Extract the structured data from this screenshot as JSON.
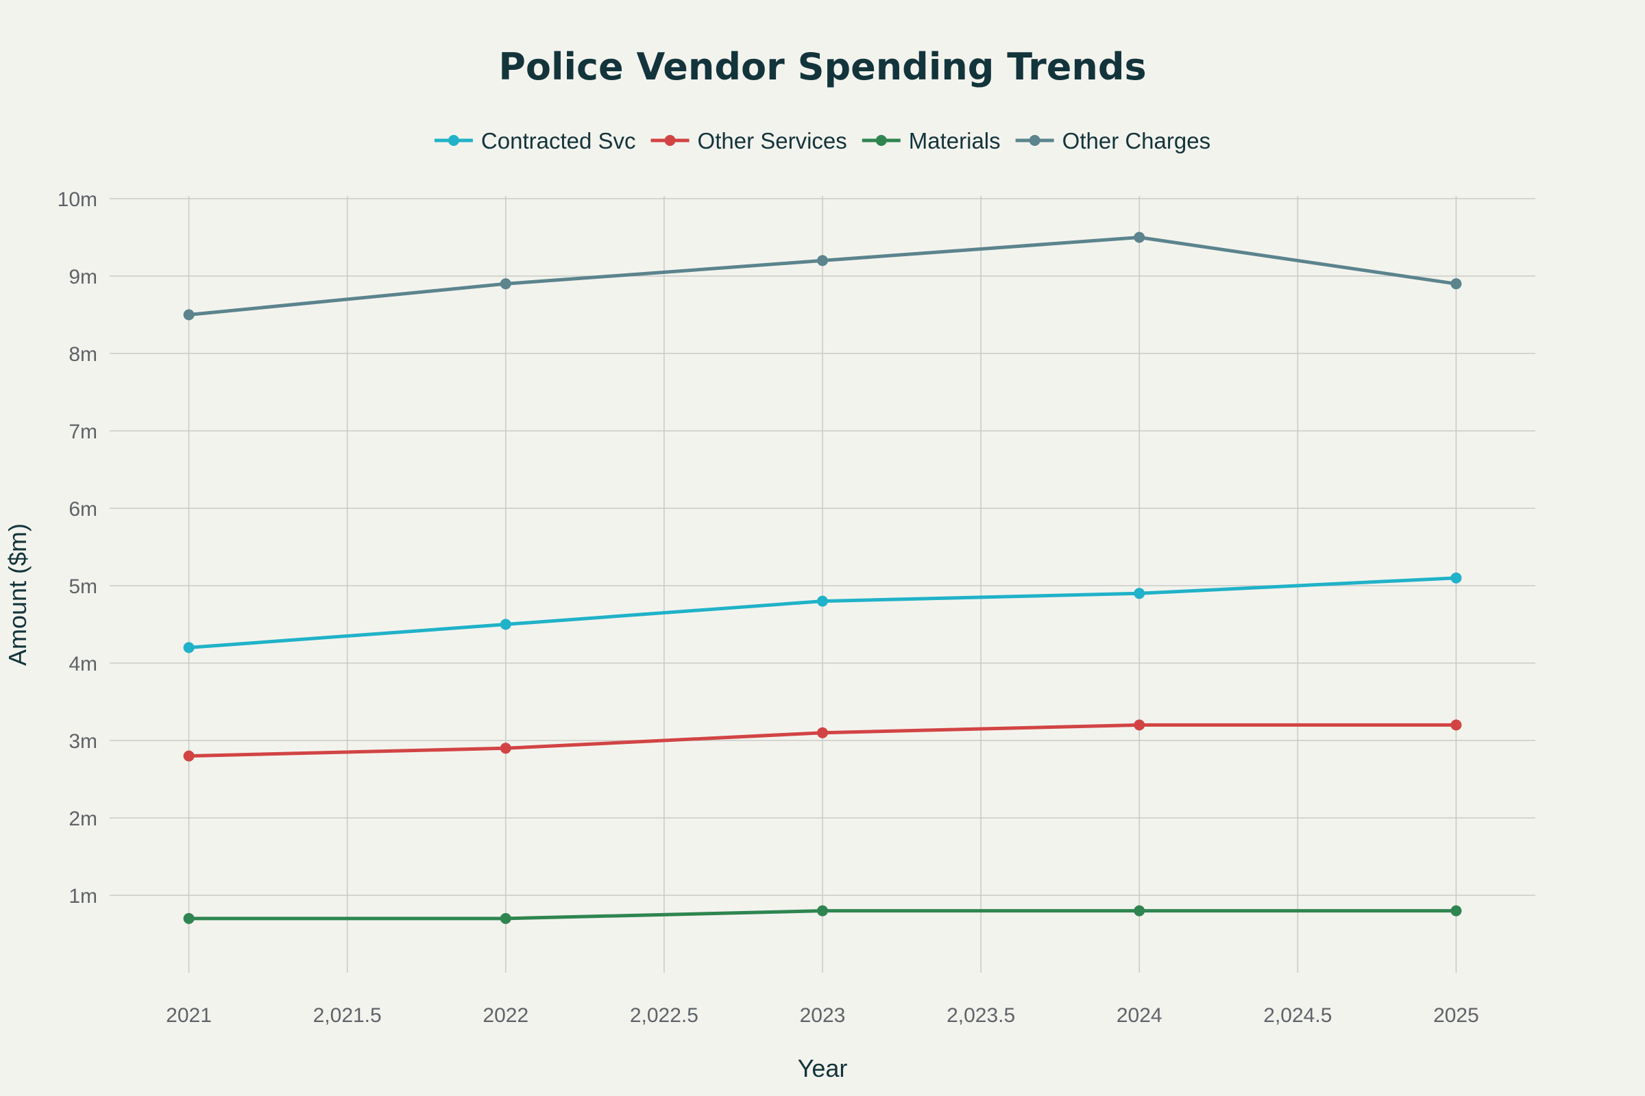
{
  "chart_data": {
    "type": "line",
    "title": "Police Vendor Spending Trends",
    "xlabel": "Year",
    "ylabel": "Amount ($m)",
    "x": [
      2021,
      2022,
      2023,
      2024,
      2025
    ],
    "xlim": [
      2020.75,
      2025.25
    ],
    "ylim": [
      0,
      10
    ],
    "x_ticks": [
      2021,
      2021.5,
      2022,
      2022.5,
      2023,
      2023.5,
      2024,
      2024.5,
      2025
    ],
    "x_tick_labels": [
      "2021",
      "2,021.5",
      "2022",
      "2,022.5",
      "2023",
      "2,023.5",
      "2024",
      "2,024.5",
      "2025"
    ],
    "y_ticks": [
      1,
      2,
      3,
      4,
      5,
      6,
      7,
      8,
      9,
      10
    ],
    "y_tick_labels": [
      "1m",
      "2m",
      "3m",
      "4m",
      "5m",
      "6m",
      "7m",
      "8m",
      "9m",
      "10m"
    ],
    "grid": true,
    "legend_position": "top-center",
    "series": [
      {
        "name": "Contracted Svc",
        "color": "#20b2c8",
        "values": [
          4.2,
          4.5,
          4.8,
          4.9,
          5.1
        ]
      },
      {
        "name": "Other Services",
        "color": "#d24444",
        "values": [
          2.8,
          2.9,
          3.1,
          3.2,
          3.2
        ]
      },
      {
        "name": "Materials",
        "color": "#2e8550",
        "values": [
          0.7,
          0.7,
          0.8,
          0.8,
          0.8
        ]
      },
      {
        "name": "Other Charges",
        "color": "#5b848d",
        "values": [
          8.5,
          8.9,
          9.2,
          9.5,
          8.9
        ]
      }
    ]
  }
}
